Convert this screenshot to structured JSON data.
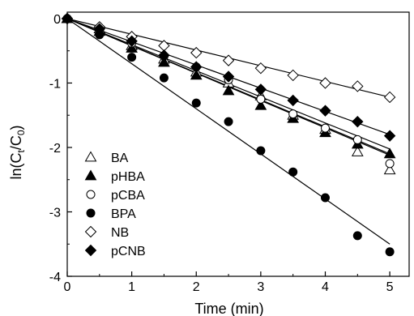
{
  "chart_data": {
    "type": "scatter",
    "title": "",
    "xlabel": "Time (min)",
    "ylabel_parts": [
      "ln(C",
      "t",
      "/C",
      "0",
      ")"
    ],
    "xlim": [
      0,
      5.3
    ],
    "ylim": [
      -4,
      0.1
    ],
    "xticks": [
      0,
      1,
      2,
      3,
      4,
      5
    ],
    "yticks": [
      0,
      -1,
      -2,
      -3,
      -4
    ],
    "legend_position": "bottom-left",
    "x": [
      0,
      0.5,
      1,
      1.5,
      2,
      2.5,
      3,
      3.5,
      4,
      4.5,
      5
    ],
    "series": [
      {
        "name": "BA",
        "marker": "triangle-open",
        "values": [
          0,
          -0.16,
          -0.42,
          -0.63,
          -0.83,
          -1.0,
          -1.2,
          -1.5,
          -1.72,
          -2.07,
          -2.35
        ],
        "fit_slope": -0.42
      },
      {
        "name": "pHBA",
        "marker": "triangle-filled",
        "values": [
          0,
          -0.2,
          -0.46,
          -0.68,
          -0.88,
          -1.12,
          -1.35,
          -1.55,
          -1.77,
          -1.95,
          -2.1
        ],
        "fit_slope": -0.424
      },
      {
        "name": "pCBA",
        "marker": "circle-open",
        "values": [
          0,
          -0.18,
          -0.38,
          -0.58,
          -0.75,
          -0.95,
          -1.25,
          -1.48,
          -1.7,
          -1.88,
          -2.25
        ],
        "fit_slope": -0.405
      },
      {
        "name": "BPA",
        "marker": "circle-filled",
        "values": [
          0,
          -0.25,
          -0.6,
          -0.92,
          -1.31,
          -1.6,
          -2.05,
          -2.38,
          -2.78,
          -3.37,
          -3.62
        ],
        "fit_slope": -0.7
      },
      {
        "name": "NB",
        "marker": "diamond-open",
        "values": [
          0,
          -0.13,
          -0.28,
          -0.42,
          -0.53,
          -0.65,
          -0.77,
          -0.88,
          -1.0,
          -1.05,
          -1.22
        ],
        "fit_slope": -0.244
      },
      {
        "name": "pCNB",
        "marker": "diamond-filled",
        "values": [
          0,
          -0.16,
          -0.35,
          -0.57,
          -0.75,
          -0.9,
          -1.1,
          -1.27,
          -1.43,
          -1.6,
          -1.82
        ],
        "fit_slope": -0.36
      }
    ]
  }
}
